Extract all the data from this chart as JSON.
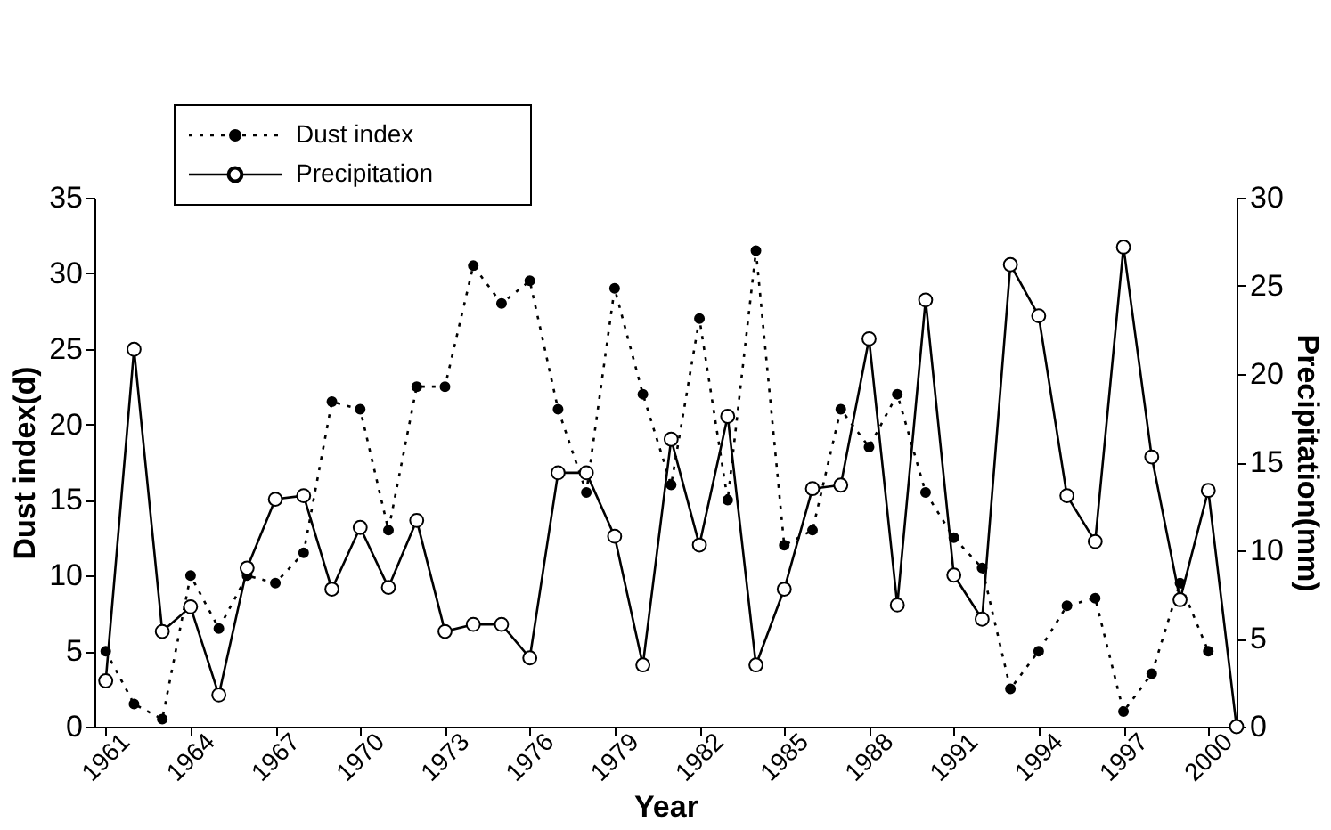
{
  "chart_data": {
    "type": "line",
    "xlabel": "Year",
    "ylabel": "Dust index(d)",
    "y2label": "Precipitation(mm)",
    "xlim": [
      1960.6,
      2001
    ],
    "xticks": [
      1961,
      1964,
      1967,
      1970,
      1973,
      1976,
      1979,
      1982,
      1985,
      1988,
      1991,
      1994,
      1997,
      2000
    ],
    "ylim": [
      0,
      35
    ],
    "yticks": [
      0,
      5,
      10,
      15,
      20,
      25,
      30,
      35
    ],
    "y2lim": [
      0,
      30
    ],
    "y2ticks": [
      0,
      5,
      10,
      15,
      20,
      25,
      30
    ],
    "grid": false,
    "legend": "top",
    "series": [
      {
        "name": "Dust index",
        "color": "#000000",
        "line_style": "dotted",
        "marker": "circle",
        "x": [
          1961,
          1962,
          1963,
          1964,
          1965,
          1966,
          1967,
          1968,
          1969,
          1970,
          1971,
          1972,
          1973,
          1974,
          1975,
          1976,
          1977,
          1978,
          1979,
          1980,
          1981,
          1982,
          1983,
          1984,
          1985,
          1986,
          1987,
          1988,
          1989,
          1990,
          1991,
          1992,
          1993,
          1994,
          1995,
          1996,
          1997,
          1998,
          1999,
          2000
        ],
        "values": [
          5,
          1.5,
          0.5,
          10,
          6.5,
          10,
          9.5,
          11.5,
          21.5,
          21,
          13,
          22.5,
          22.5,
          30.5,
          28,
          29.5,
          21,
          15.5,
          29,
          22,
          16,
          27,
          15,
          31.5,
          12,
          13,
          21,
          18.5,
          22,
          15.5,
          12.5,
          10.5,
          2.5,
          5,
          8,
          8.5,
          1,
          3.5,
          9.5,
          5
        ]
      },
      {
        "name": "Precipitation",
        "color": "#000000",
        "line_style": "solid",
        "marker": "circle",
        "axis": "y2",
        "x": [
          1961,
          1962,
          1963,
          1964,
          1965,
          1966,
          1967,
          1968,
          1969,
          1970,
          1971,
          1972,
          1973,
          1974,
          1975,
          1976,
          1977,
          1978,
          1979,
          1980,
          1981,
          1982,
          1983,
          1984,
          1985,
          1986,
          1987,
          1988,
          1989,
          1990,
          1991,
          1992,
          1993,
          1994,
          1995,
          1996,
          1997,
          1998,
          1999,
          2000,
          2001
        ],
        "values": [
          2.6,
          21.4,
          5.4,
          6.8,
          1.8,
          9,
          12.9,
          13.1,
          7.8,
          11.3,
          7.9,
          11.7,
          5.4,
          5.8,
          5.8,
          3.9,
          14.4,
          14.4,
          10.8,
          3.5,
          16.3,
          10.3,
          17.6,
          3.5,
          7.8,
          13.5,
          13.7,
          22,
          6.9,
          24.2,
          8.6,
          6.1,
          26.2,
          23.3,
          13.1,
          10.5,
          27.2,
          15.3,
          7.2,
          13.4,
          0
        ]
      }
    ]
  }
}
